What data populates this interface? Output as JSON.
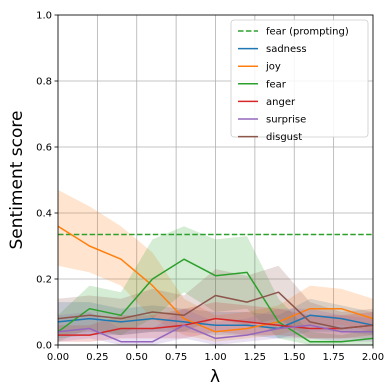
{
  "chart_data": {
    "type": "line",
    "xlabel": "λ",
    "ylabel": "Sentiment score",
    "xlim": [
      0,
      2
    ],
    "ylim": [
      0,
      1
    ],
    "x_ticks": [
      "0.00",
      "0.25",
      "0.50",
      "0.75",
      "1.00",
      "1.25",
      "1.50",
      "1.75",
      "2.00"
    ],
    "y_ticks": [
      "0.0",
      "0.2",
      "0.4",
      "0.6",
      "0.8",
      "1.0"
    ],
    "grid": true,
    "legend_position": "top-right",
    "x": [
      0.0,
      0.2,
      0.4,
      0.6,
      0.8,
      1.0,
      1.2,
      1.4,
      1.6,
      1.8,
      2.0
    ],
    "reference": {
      "name": "fear (prompting)",
      "value": 0.335,
      "color": "#2ca02c",
      "style": "dashed"
    },
    "series": [
      {
        "name": "sadness",
        "color": "#1f77b4",
        "values": [
          0.07,
          0.08,
          0.07,
          0.08,
          0.07,
          0.06,
          0.06,
          0.05,
          0.09,
          0.08,
          0.06
        ],
        "lower": [
          0.02,
          0.03,
          0.03,
          0.04,
          0.04,
          0.03,
          0.03,
          0.02,
          0.04,
          0.04,
          0.03
        ],
        "upper": [
          0.13,
          0.13,
          0.11,
          0.12,
          0.11,
          0.1,
          0.1,
          0.09,
          0.14,
          0.12,
          0.1
        ]
      },
      {
        "name": "joy",
        "color": "#ff7f0e",
        "values": [
          0.36,
          0.3,
          0.26,
          0.18,
          0.08,
          0.04,
          0.05,
          0.07,
          0.11,
          0.11,
          0.08
        ],
        "lower": [
          0.24,
          0.22,
          0.18,
          0.08,
          0.03,
          0.01,
          0.02,
          0.03,
          0.06,
          0.06,
          0.04
        ],
        "upper": [
          0.47,
          0.42,
          0.36,
          0.28,
          0.14,
          0.09,
          0.1,
          0.12,
          0.18,
          0.17,
          0.14
        ]
      },
      {
        "name": "fear",
        "color": "#2ca02c",
        "values": [
          0.04,
          0.11,
          0.09,
          0.2,
          0.26,
          0.21,
          0.22,
          0.07,
          0.01,
          0.01,
          0.02
        ],
        "lower": [
          0.01,
          0.05,
          0.03,
          0.08,
          0.16,
          0.1,
          0.11,
          0.02,
          0.0,
          0.0,
          0.0
        ],
        "upper": [
          0.09,
          0.18,
          0.16,
          0.32,
          0.36,
          0.32,
          0.33,
          0.14,
          0.04,
          0.03,
          0.05
        ]
      },
      {
        "name": "anger",
        "color": "#d62728",
        "values": [
          0.03,
          0.03,
          0.05,
          0.05,
          0.06,
          0.08,
          0.07,
          0.06,
          0.05,
          0.05,
          0.06
        ],
        "lower": [
          0.01,
          0.01,
          0.02,
          0.02,
          0.02,
          0.04,
          0.03,
          0.03,
          0.02,
          0.02,
          0.03
        ],
        "upper": [
          0.06,
          0.06,
          0.09,
          0.09,
          0.11,
          0.13,
          0.12,
          0.11,
          0.09,
          0.09,
          0.1
        ]
      },
      {
        "name": "surprise",
        "color": "#9467bd",
        "values": [
          0.04,
          0.05,
          0.01,
          0.01,
          0.06,
          0.02,
          0.03,
          0.05,
          0.06,
          0.04,
          0.04
        ],
        "lower": [
          0.01,
          0.02,
          0.0,
          0.0,
          0.02,
          0.0,
          0.01,
          0.02,
          0.02,
          0.01,
          0.01
        ],
        "upper": [
          0.09,
          0.1,
          0.05,
          0.05,
          0.11,
          0.07,
          0.08,
          0.11,
          0.11,
          0.09,
          0.08
        ]
      },
      {
        "name": "disgust",
        "color": "#8c564b",
        "values": [
          0.08,
          0.09,
          0.08,
          0.1,
          0.09,
          0.15,
          0.13,
          0.16,
          0.07,
          0.05,
          0.06
        ],
        "lower": [
          0.03,
          0.04,
          0.03,
          0.04,
          0.04,
          0.08,
          0.06,
          0.08,
          0.02,
          0.02,
          0.02
        ],
        "upper": [
          0.14,
          0.15,
          0.14,
          0.17,
          0.15,
          0.23,
          0.21,
          0.24,
          0.13,
          0.1,
          0.11
        ]
      }
    ]
  }
}
